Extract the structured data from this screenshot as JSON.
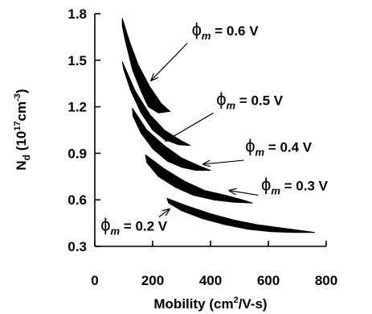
{
  "chart_data": {
    "type": "area",
    "title": "",
    "xlabel": {
      "main": "Mobility (cm",
      "sup": "2",
      "rest": "/V-s)"
    },
    "ylabel": {
      "main": "N",
      "sub": "d",
      "paren": " (10",
      "sup1": "17",
      "cm": "cm",
      "sup2": "-3",
      "close": ")"
    },
    "xlim": [
      0,
      800
    ],
    "ylim": [
      0.3,
      1.8
    ],
    "xticks": [
      "0",
      "200",
      "400",
      "600",
      "800"
    ],
    "yticks": [
      "0.3",
      "0.6",
      "0.9",
      "1.2",
      "1.5",
      "1.8"
    ],
    "grid": false,
    "colors": {
      "band": "#000000",
      "axis": "#000000",
      "background": "#ffffff"
    },
    "series": [
      {
        "name": "φm = 0.6 V",
        "label": {
          "phi": "ϕ",
          "sub": "m",
          "value": " = 0.6 V"
        },
        "upper": [
          [
            95,
            1.77
          ],
          [
            120,
            1.62
          ],
          [
            150,
            1.47
          ],
          [
            190,
            1.33
          ],
          [
            230,
            1.22
          ],
          [
            260,
            1.17
          ]
        ],
        "lower": [
          [
            260,
            1.17
          ],
          [
            220,
            1.16
          ],
          [
            185,
            1.2
          ],
          [
            160,
            1.3
          ],
          [
            130,
            1.44
          ],
          [
            105,
            1.63
          ],
          [
            95,
            1.72
          ]
        ]
      },
      {
        "name": "φm = 0.5 V",
        "label": {
          "phi": "ϕ",
          "sub": "m",
          "value": " = 0.5 V"
        },
        "upper": [
          [
            95,
            1.49
          ],
          [
            140,
            1.3
          ],
          [
            190,
            1.15
          ],
          [
            240,
            1.05
          ],
          [
            300,
            0.98
          ],
          [
            330,
            0.95
          ]
        ],
        "lower": [
          [
            330,
            0.95
          ],
          [
            290,
            0.955
          ],
          [
            240,
            0.99
          ],
          [
            200,
            1.05
          ],
          [
            160,
            1.16
          ],
          [
            125,
            1.3
          ],
          [
            100,
            1.44
          ]
        ]
      },
      {
        "name": "φm = 0.4 V",
        "label": {
          "phi": "ϕ",
          "sub": "m",
          "value": " = 0.4 V"
        },
        "upper": [
          [
            130,
            1.19
          ],
          [
            180,
            1.05
          ],
          [
            240,
            0.95
          ],
          [
            300,
            0.87
          ],
          [
            360,
            0.82
          ],
          [
            400,
            0.79
          ]
        ],
        "lower": [
          [
            400,
            0.79
          ],
          [
            350,
            0.79
          ],
          [
            300,
            0.81
          ],
          [
            250,
            0.85
          ],
          [
            200,
            0.93
          ],
          [
            160,
            1.03
          ],
          [
            132,
            1.14
          ]
        ]
      },
      {
        "name": "φm = 0.3 V",
        "label": {
          "phi": "ϕ",
          "sub": "m",
          "value": " = 0.3 V"
        },
        "upper": [
          [
            175,
            0.89
          ],
          [
            240,
            0.8
          ],
          [
            310,
            0.72
          ],
          [
            380,
            0.66
          ],
          [
            450,
            0.63
          ],
          [
            510,
            0.6
          ],
          [
            545,
            0.58
          ]
        ],
        "lower": [
          [
            545,
            0.58
          ],
          [
            480,
            0.585
          ],
          [
            410,
            0.6
          ],
          [
            340,
            0.63
          ],
          [
            280,
            0.68
          ],
          [
            220,
            0.75
          ],
          [
            180,
            0.84
          ]
        ]
      },
      {
        "name": "φm = 0.2 V",
        "label": {
          "phi": "ϕ",
          "sub": "m",
          "value": " = 0.2 V"
        },
        "upper": [
          [
            250,
            0.61
          ],
          [
            320,
            0.56
          ],
          [
            400,
            0.51
          ],
          [
            480,
            0.47
          ],
          [
            560,
            0.44
          ],
          [
            640,
            0.42
          ],
          [
            700,
            0.405
          ],
          [
            760,
            0.39
          ]
        ],
        "lower": [
          [
            760,
            0.39
          ],
          [
            690,
            0.39
          ],
          [
            610,
            0.395
          ],
          [
            530,
            0.41
          ],
          [
            450,
            0.44
          ],
          [
            370,
            0.48
          ],
          [
            300,
            0.53
          ],
          [
            255,
            0.58
          ]
        ]
      }
    ],
    "annotations": [
      {
        "series": 0,
        "text_at": [
          335,
          1.66
        ],
        "arrow_from": [
          320,
          1.61
        ],
        "arrow_to": [
          195,
          1.37
        ]
      },
      {
        "series": 1,
        "text_at": [
          420,
          1.21
        ],
        "arrow_from": [
          410,
          1.16
        ],
        "arrow_to": [
          245,
          0.98
        ]
      },
      {
        "series": 2,
        "text_at": [
          520,
          0.91
        ],
        "arrow_from": [
          515,
          0.855
        ],
        "arrow_to": [
          375,
          0.83
        ]
      },
      {
        "series": 3,
        "text_at": [
          575,
          0.66
        ],
        "arrow_from": [
          565,
          0.63
        ],
        "arrow_to": [
          465,
          0.66
        ]
      },
      {
        "series": 4,
        "text_at": [
          20,
          0.4
        ],
        "arrow_from": [
          222,
          0.49
        ],
        "arrow_to": [
          258,
          0.54
        ]
      }
    ]
  }
}
